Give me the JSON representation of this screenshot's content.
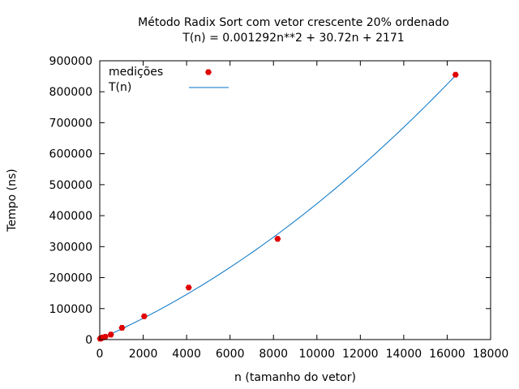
{
  "chart_data": {
    "type": "scatter",
    "title": "Método Radix Sort com vetor crescente 20% ordenado",
    "subtitle": "T(n) = 0.001292n**2 + 30.72n + 2171",
    "xlabel": "n (tamanho do vetor)",
    "ylabel": "Tempo (ns)",
    "xlim": [
      0,
      18000
    ],
    "ylim": [
      0,
      900000
    ],
    "xticks": [
      "0",
      "2000",
      "4000",
      "6000",
      "8000",
      "10000",
      "12000",
      "14000",
      "16000",
      "18000"
    ],
    "yticks": [
      "0",
      "100000",
      "200000",
      "300000",
      "400000",
      "500000",
      "600000",
      "700000",
      "800000",
      "900000"
    ],
    "legend_position": "top-left",
    "grid": false,
    "series": [
      {
        "name": "medições",
        "kind": "points",
        "color": "#e00000",
        "x": [
          16,
          32,
          64,
          128,
          256,
          512,
          1024,
          2048,
          4096,
          8192,
          16384
        ],
        "y": [
          2800,
          3200,
          4500,
          6500,
          9000,
          16000,
          38000,
          75000,
          168000,
          325000,
          855000
        ]
      },
      {
        "name": "T(n)",
        "kind": "fit",
        "color": "#0072c4",
        "coefficients": [
          0.001292,
          30.72,
          2171
        ],
        "x_range": [
          0,
          16384
        ]
      }
    ]
  }
}
